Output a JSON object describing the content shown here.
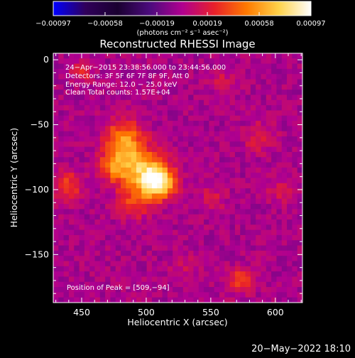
{
  "chart_data": {
    "type": "heatmap",
    "title": "Reconstructed RHESSI Image",
    "xlabel": "Heliocentric X (arcsec)",
    "ylabel": "Heliocentric Y (arcsec)",
    "xlim": [
      428,
      621
    ],
    "ylim": [
      -187,
      5
    ],
    "xticks": [
      450,
      500,
      550,
      600
    ],
    "xtick_labels": [
      "450",
      "500",
      "550",
      "600"
    ],
    "yticks": [
      0,
      -50,
      -100,
      -150
    ],
    "ytick_labels": [
      "0",
      "−50",
      "−100",
      "−150"
    ],
    "annotations": [
      "24−Apr−2015 23:38:56.000 to 23:44:56.000",
      "Detectors: 3F 5F 6F 7F 8F 9F, Att 0",
      "Energy Range: 12.0 − 25.0 keV",
      "Clean    Total counts: 1.57E+04"
    ],
    "peak_label": "Position of Peak = [509,−94]",
    "peak": [
      509,
      -94
    ],
    "colorbar": {
      "range": [
        -0.00097,
        0.00097
      ],
      "tick_labels": [
        "−0.00097",
        "−0.00058",
        "−0.00019",
        "0.00019",
        "0.00058",
        "0.00097"
      ],
      "unit_label": "(photons cm⁻² s⁻¹ asec⁻²)",
      "colors": [
        "#0000ff",
        "#30005a",
        "#1a0030",
        "#4b0b7d",
        "#b00090",
        "#e8202a",
        "#ff7a00",
        "#ffd24a",
        "#ffffff"
      ]
    },
    "sources": [
      {
        "x": 509,
        "y": -94,
        "amplitude": 0.00097,
        "sigma": 9
      },
      {
        "x": 493,
        "y": -82,
        "amplitude": 0.0006,
        "sigma": 12
      },
      {
        "x": 482,
        "y": -60,
        "amplitude": 0.00048,
        "sigma": 10
      },
      {
        "x": 474,
        "y": -82,
        "amplitude": 0.0004,
        "sigma": 8
      },
      {
        "x": 490,
        "y": -110,
        "amplitude": 0.0003,
        "sigma": 9
      },
      {
        "x": 440,
        "y": -97,
        "amplitude": 0.00032,
        "sigma": 8
      },
      {
        "x": 450,
        "y": -10,
        "amplitude": 0.00022,
        "sigma": 6
      },
      {
        "x": 573,
        "y": -170,
        "amplitude": 0.00034,
        "sigma": 7
      },
      {
        "x": 588,
        "y": -60,
        "amplitude": 0.00022,
        "sigma": 8
      },
      {
        "x": 605,
        "y": -100,
        "amplitude": 0.00018,
        "sigma": 7
      },
      {
        "x": 552,
        "y": -105,
        "amplitude": 0.00014,
        "sigma": 8
      },
      {
        "x": 530,
        "y": -160,
        "amplitude": 0.00012,
        "sigma": 7
      },
      {
        "x": 560,
        "y": -18,
        "amplitude": 0.00016,
        "sigma": 7
      }
    ]
  },
  "footer": {
    "timestamp": "20−May−2022 18:10"
  }
}
